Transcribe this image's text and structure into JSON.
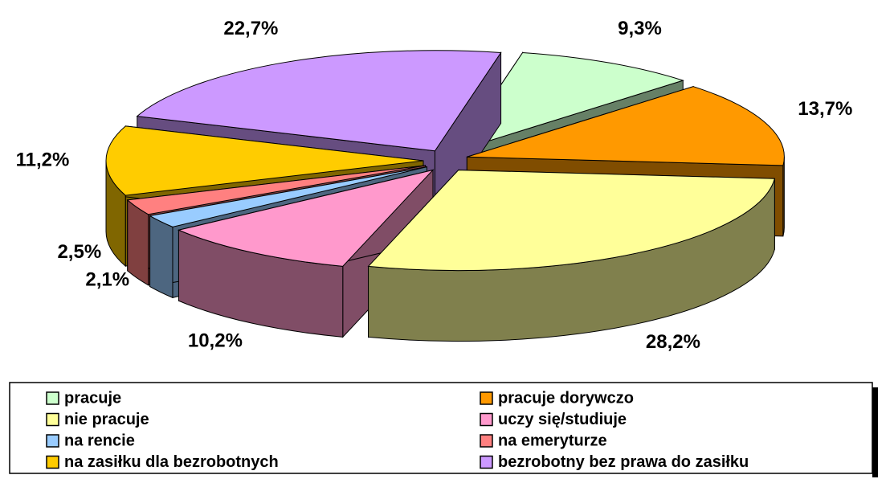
{
  "chart_data": {
    "type": "pie3d",
    "categories": [
      "pracuje",
      "pracuje dorywczo",
      "nie pracuje",
      "uczy się/studiuje",
      "na rencie",
      "na emeryturze",
      "na zasiłku dla bezrobotnych",
      "bezrobotny bez prawa do zasiłku"
    ],
    "values": [
      9.3,
      13.7,
      28.2,
      10.2,
      2.1,
      2.5,
      11.2,
      22.7
    ],
    "value_labels": [
      "9,3%",
      "13,7%",
      "28,2%",
      "10,2%",
      "2,1%",
      "2,5%",
      "11,2%",
      "22,7%"
    ],
    "colors": [
      "#ccffcc",
      "#ff9900",
      "#ffff99",
      "#ff99cc",
      "#99ccff",
      "#ff8080",
      "#ffcc00",
      "#cc99ff"
    ],
    "legend": "bottom"
  }
}
